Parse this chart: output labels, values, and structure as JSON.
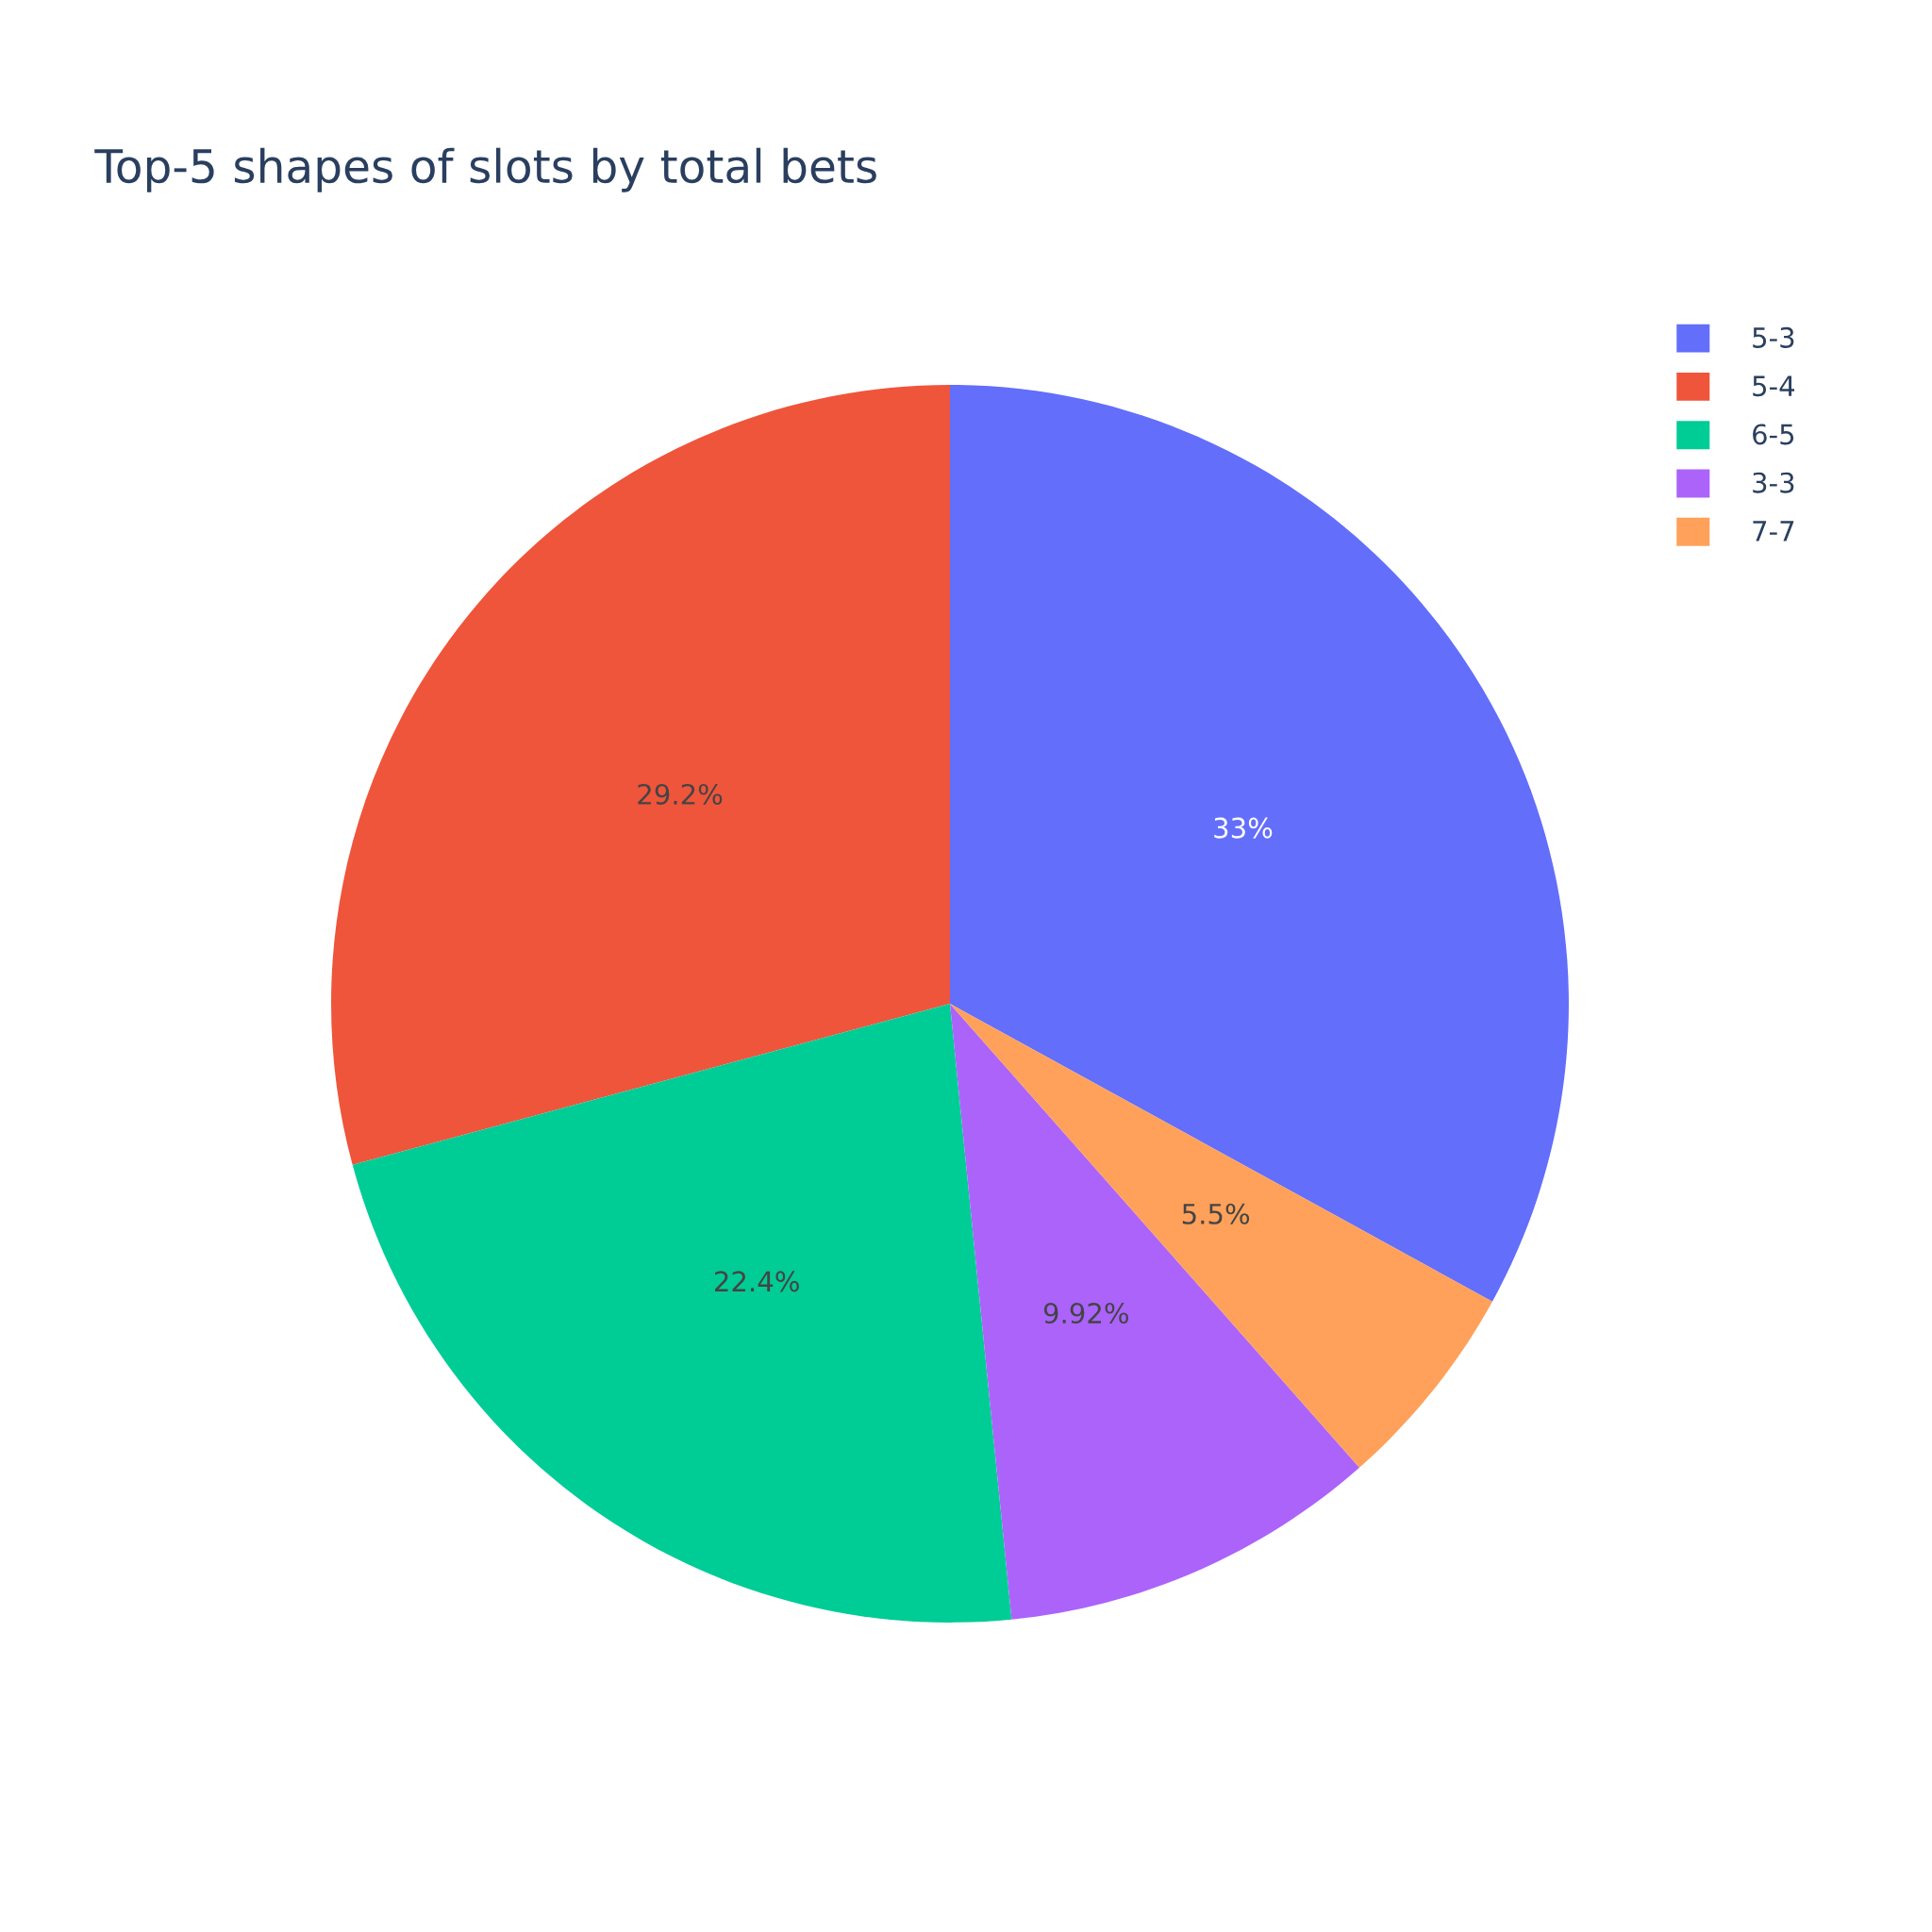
{
  "chart_data": {
    "type": "pie",
    "title": "Top-5 shapes of slots by total bets",
    "categories": [
      "5-3",
      "5-4",
      "6-5",
      "3-3",
      "7-7"
    ],
    "values": [
      33,
      29.2,
      22.4,
      9.92,
      5.5
    ],
    "value_labels": [
      "33%",
      "29.2%",
      "22.4%",
      "9.92%",
      "5.5%"
    ],
    "colors": [
      "#636efa",
      "#ef553b",
      "#00cc96",
      "#ab63fa",
      "#ffa15a"
    ],
    "legend": "top right"
  }
}
